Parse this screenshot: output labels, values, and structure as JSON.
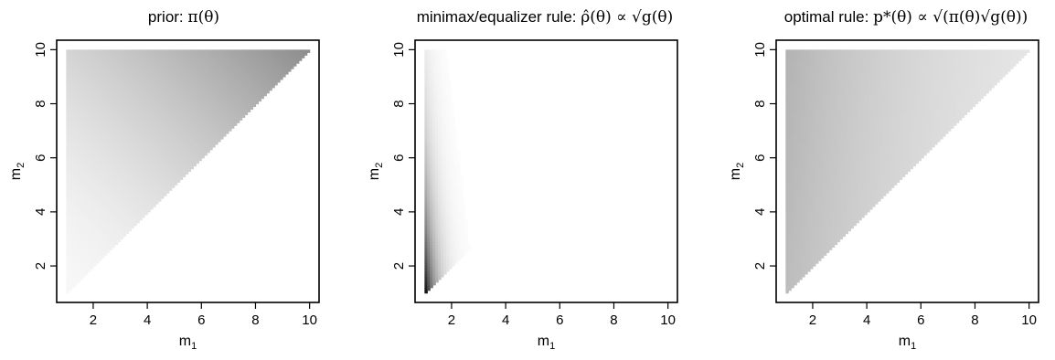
{
  "chart_data": [
    {
      "type": "heatmap",
      "title": "prior: π(θ)",
      "title_parts": {
        "text": "prior: ",
        "formula": "π(θ)"
      },
      "xlabel": "m",
      "xlabel_sub": "1",
      "ylabel": "m",
      "ylabel_sub": "2",
      "xlim": [
        0.65,
        10.35
      ],
      "ylim": [
        0.65,
        10.35
      ],
      "xticks": [
        "2",
        "4",
        "6",
        "8",
        "10"
      ],
      "yticks": [
        "2",
        "4",
        "6",
        "8",
        "10"
      ],
      "grid": false,
      "support": "m1 <= m2",
      "density": "increases toward m1 = m2 = 10 (light gray at low values, mid gray near the upper-right corner)",
      "max_shade": 0.45
    },
    {
      "type": "heatmap",
      "title": "minimax/equalizer rule: ρ̂(θ) ∝ √g(θ)",
      "title_parts": {
        "text": "minimax/equalizer rule: ",
        "formula": "ρ̂(θ) ∝ √g(θ)"
      },
      "xlabel": "m",
      "xlabel_sub": "1",
      "ylabel": "m",
      "ylabel_sub": "2",
      "xlim": [
        0.65,
        10.35
      ],
      "ylim": [
        0.65,
        10.35
      ],
      "xticks": [
        "2",
        "4",
        "6",
        "8",
        "10"
      ],
      "yticks": [
        "2",
        "4",
        "6",
        "8",
        "10"
      ],
      "grid": false,
      "support": "m1 <= m2",
      "density": "concentrated at m1 ≈ 1, darkest near m2 ≈ 1–3, fading rapidly as m1 grows",
      "max_shade": 1.0
    },
    {
      "type": "heatmap",
      "title": "optimal rule: p*(θ) ∝ √(π(θ)√g(θ))",
      "title_parts": {
        "text": "optimal rule: ",
        "formula": "p*(θ) ∝ √(π(θ)√g(θ))"
      },
      "xlabel": "m",
      "xlabel_sub": "1",
      "ylabel": "m",
      "ylabel_sub": "2",
      "xlim": [
        0.65,
        10.35
      ],
      "ylim": [
        0.65,
        10.35
      ],
      "xticks": [
        "2",
        "4",
        "6",
        "8",
        "10"
      ],
      "yticks": [
        "2",
        "4",
        "6",
        "8",
        "10"
      ],
      "grid": false,
      "support": "m1 <= m2",
      "density": "moderate near m1 ≈ 1, fading gently toward the diagonal",
      "max_shade": 0.3
    }
  ]
}
